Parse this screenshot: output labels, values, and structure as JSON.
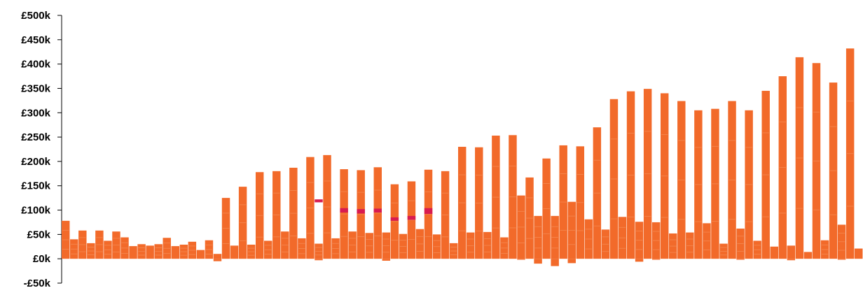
{
  "chart_data": {
    "type": "bar",
    "title": "",
    "xlabel": "",
    "ylabel": "",
    "ylim": [
      -50000,
      500000
    ],
    "y_ticks": [
      {
        "value": 500000,
        "label": "£500k"
      },
      {
        "value": 450000,
        "label": "£450k"
      },
      {
        "value": 400000,
        "label": "£400k"
      },
      {
        "value": 350000,
        "label": "£350k"
      },
      {
        "value": 300000,
        "label": "£300k"
      },
      {
        "value": 250000,
        "label": "£250k"
      },
      {
        "value": 200000,
        "label": "£200k"
      },
      {
        "value": 150000,
        "label": "£150k"
      },
      {
        "value": 100000,
        "label": "£100k"
      },
      {
        "value": 50000,
        "label": "£50k"
      },
      {
        "value": 0,
        "label": "£0k"
      },
      {
        "value": -50000,
        "label": "-£50k"
      }
    ],
    "grid": false,
    "legend": "none",
    "series_color": "#f26a2a",
    "highlight_color": "#d81b50",
    "values": [
      78000,
      40000,
      58000,
      32000,
      58000,
      37000,
      56000,
      44000,
      26000,
      30000,
      27000,
      30000,
      43000,
      26000,
      29000,
      35000,
      18000,
      38000,
      10000,
      125000,
      27000,
      148000,
      29000,
      178000,
      37000,
      180000,
      56000,
      187000,
      42000,
      209000,
      31000,
      213000,
      42000,
      184000,
      56000,
      182000,
      53000,
      188000,
      54000,
      153000,
      51000,
      159000,
      61000,
      183000,
      50000,
      180000,
      32000,
      230000,
      54000,
      229000,
      55000,
      253000,
      44000,
      254000,
      130000,
      167000,
      88000,
      206000,
      88000,
      233000,
      117000,
      231000,
      81000,
      270000,
      60000,
      328000,
      86000,
      344000,
      76000,
      349000,
      75000,
      340000,
      52000,
      324000,
      54000,
      305000,
      73000,
      308000,
      31000,
      324000,
      62000,
      305000,
      37000,
      345000,
      25000,
      375000,
      27000,
      414000,
      14000,
      402000,
      38000,
      362000,
      70000,
      432000,
      21000
    ],
    "negatives": [
      [
        18,
        -5000
      ],
      [
        30,
        -3000
      ],
      [
        38,
        -4000
      ],
      [
        54,
        -2000
      ],
      [
        56,
        -10000
      ],
      [
        58,
        -15000
      ],
      [
        60,
        -9000
      ],
      [
        68,
        -6000
      ],
      [
        70,
        -2000
      ],
      [
        80,
        -2000
      ],
      [
        86,
        -3000
      ],
      [
        92,
        -2000
      ]
    ],
    "highlights": [
      [
        30,
        116000,
        122000
      ],
      [
        33,
        95000,
        104000
      ],
      [
        35,
        93000,
        102000
      ],
      [
        37,
        95000,
        103000
      ],
      [
        39,
        78000,
        85000
      ],
      [
        41,
        80000,
        88000
      ],
      [
        43,
        92000,
        104000
      ]
    ]
  }
}
